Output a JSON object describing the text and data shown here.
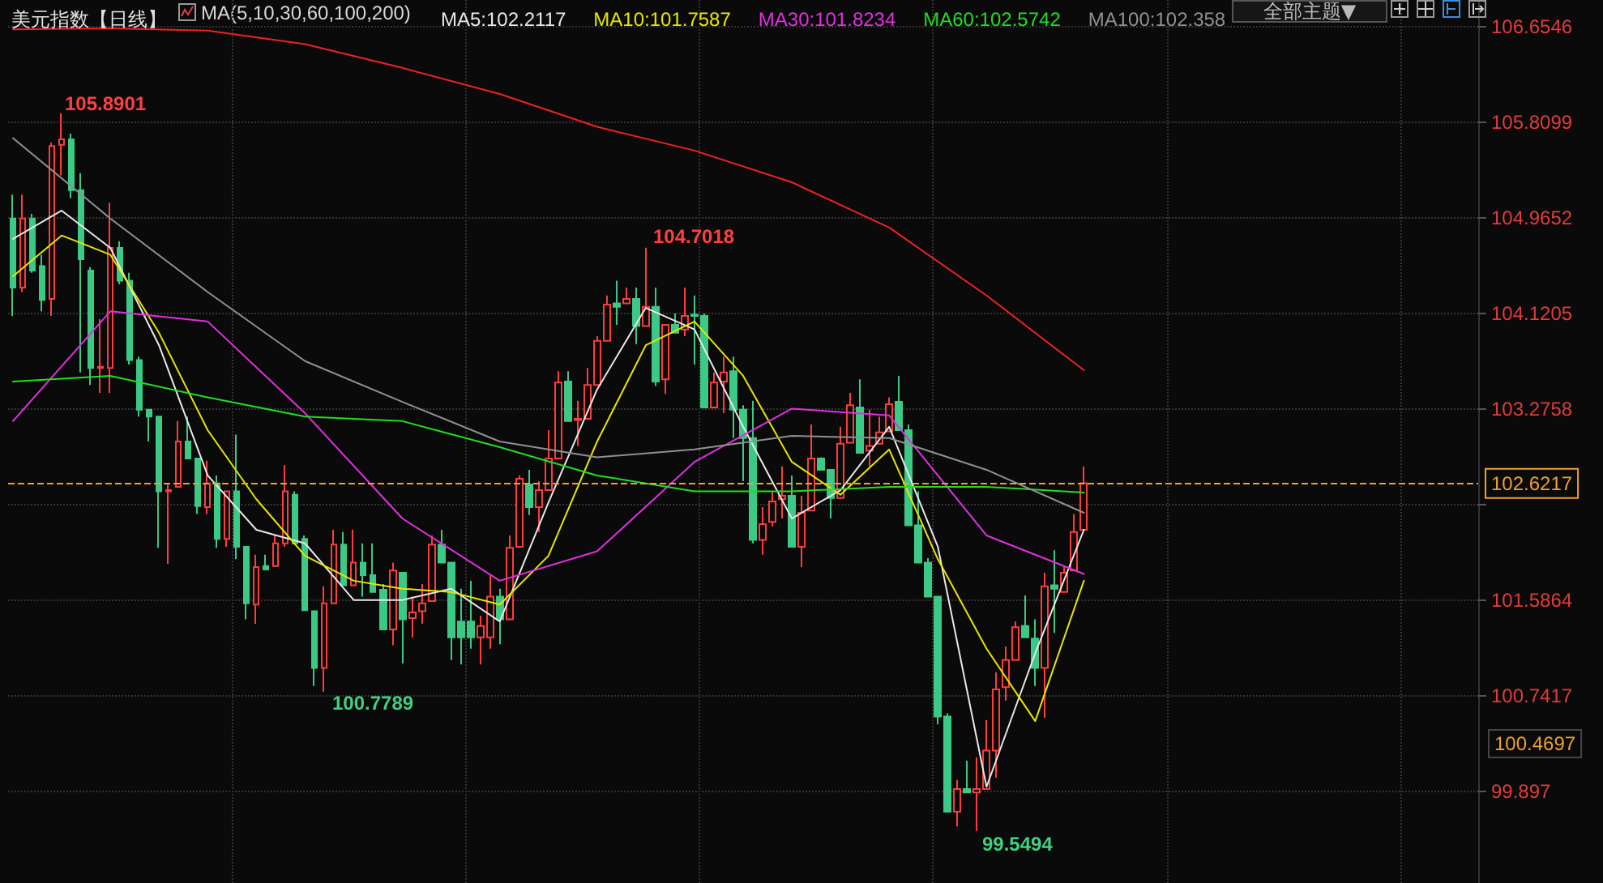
{
  "chart_data": {
    "type": "candlestick",
    "title": "美元指数【日线】",
    "annotations": [
      "MA(5,10,30,60,100,200)",
      "105.8901",
      "104.7018",
      "100.7789",
      "99.5494",
      "100.4697",
      "全部主题▼"
    ],
    "categories": [
      null,
      null,
      null,
      null,
      null,
      null,
      null,
      null,
      null,
      null,
      null,
      null,
      null,
      null,
      null,
      null,
      null,
      null,
      null,
      null,
      null,
      null,
      null,
      null,
      null,
      null,
      null,
      null,
      null,
      null,
      null,
      null,
      null,
      null,
      null,
      null,
      null,
      null,
      null,
      null,
      null,
      null,
      null,
      null,
      null,
      null,
      null,
      null,
      null,
      null,
      null,
      null,
      null,
      null,
      null,
      null,
      null,
      null,
      null,
      null,
      null,
      null,
      null,
      null,
      null,
      null,
      null,
      null,
      null,
      null,
      null,
      null,
      null,
      null,
      null,
      null,
      null,
      null,
      null,
      null,
      null,
      null,
      null,
      null,
      null,
      null,
      null,
      null,
      null,
      null,
      null,
      null,
      null,
      null,
      null,
      null,
      null,
      null,
      null,
      null,
      null,
      null,
      null,
      null,
      null,
      null,
      null,
      null,
      null,
      null,
      null,
      null,
      null,
      null,
      null,
      null,
      null,
      null,
      null,
      null,
      null,
      null,
      null,
      null,
      null,
      null,
      null,
      null,
      null,
      null,
      null,
      null,
      null,
      null,
      null,
      null,
      null,
      null,
      null,
      null,
      null,
      null,
      null,
      null,
      null,
      null,
      null,
      null,
      null,
      null,
      null
    ],
    "series": [
      {
        "colors": [
          "#3cc885",
          "#ff3b3b",
          "#3cc885",
          "#3cc885",
          "#ff3b3b",
          "#ff3b3b",
          "#3cc885",
          "#3cc885",
          "#3cc885",
          "#ff3b3b",
          "#ff3b3b",
          "#3cc885",
          "#3cc885",
          "#3cc885",
          "#3cc885",
          "#3cc885",
          "#ff3b3b",
          "#ff3b3b",
          "#3cc885",
          "#3cc885",
          "#ff3b3b",
          "#3cc885",
          "#ff3b3b",
          "#3cc885",
          "#3cc885",
          "#ff3b3b",
          "#3cc885",
          "#ff3b3b",
          "#ff3b3b",
          "#3cc885",
          "#3cc885",
          "#3cc885",
          "#ff3b3b",
          "#ff3b3b",
          "#3cc885",
          "#ff3b3b",
          "#3cc885",
          "#3cc885",
          "#3cc885",
          "#ff3b3b",
          "#3cc885",
          "#ff3b3b",
          "#ff3b3b",
          "#ff3b3b",
          "#3cc885",
          "#3cc885",
          "#3cc885",
          "#3cc885",
          "#ff3b3b",
          "#ff3b3b",
          "#3cc885",
          "#ff3b3b",
          "#ff3b3b",
          "#3cc885",
          "#ff3b3b",
          "#ff3b3b",
          "#ff3b3b",
          "#3cc885",
          "#ff3b3b",
          "#ff3b3b",
          "#ff3b3b",
          "#ff3b3b",
          "#3cc885",
          "#ff3b3b",
          "#3cc885",
          "#ff3b3b",
          "#3cc885",
          "#ff3b3b",
          "#3cc885",
          "#ff3b3b",
          "#3cc885",
          "#3cc885",
          "#ff3b3b",
          "#ff3b3b",
          "#3cc885",
          "#3cc885",
          "#3cc885",
          "#ff3b3b",
          "#ff3b3b",
          "#ff3b3b",
          "#3cc885",
          "#ff3b3b",
          "#ff3b3b",
          "#3cc885",
          "#3cc885",
          "#ff3b3b",
          "#ff3b3b",
          "#3cc885",
          "#ff3b3b",
          "#ff3b3b",
          "#ff3b3b",
          "#3cc885",
          "#3cc885",
          "#3cc885",
          "#3cc885",
          "#3cc885",
          "#3cc885",
          "#ff3b3b",
          "#3cc885",
          "#ff3b3b",
          "#ff3b3b",
          "#ff3b3b",
          "#ff3b3b",
          "#ff3b3b",
          "#3cc885",
          "#3cc885",
          "#ff3b3b",
          "#3cc885",
          "#ff3b3b",
          "#ff3b3b",
          "#ff3b3b",
          null,
          null,
          null,
          null,
          null,
          null,
          null,
          null,
          null,
          null,
          null,
          null,
          null,
          null,
          null,
          null,
          null,
          null,
          null,
          null,
          null,
          null,
          null,
          null,
          null,
          null,
          null,
          null,
          null,
          null,
          null,
          null,
          null,
          null,
          null,
          null,
          null,
          null,
          null,
          null
        ],
        "ohlc": [
          [
            104.96,
            105.17,
            104.1,
            104.35
          ],
          [
            104.35,
            105.17,
            104.31,
            104.96
          ],
          [
            104.96,
            105.0,
            104.48,
            104.5
          ],
          [
            104.54,
            104.64,
            104.14,
            104.24
          ],
          [
            104.25,
            105.63,
            104.1,
            105.6
          ],
          [
            105.61,
            105.8901,
            105.34,
            105.66
          ],
          [
            105.66,
            105.71,
            105.14,
            105.21
          ],
          [
            105.21,
            105.36,
            103.6,
            104.6
          ],
          [
            104.5,
            104.53,
            103.49,
            103.64
          ],
          [
            103.64,
            104.07,
            103.42,
            103.65
          ],
          [
            103.64,
            105.1,
            103.42,
            104.7
          ],
          [
            104.7,
            104.76,
            104.38,
            104.41
          ],
          [
            104.41,
            104.48,
            103.67,
            103.71
          ],
          [
            103.71,
            103.74,
            103.21,
            103.27
          ],
          [
            103.27,
            103.27,
            102.99,
            103.21
          ],
          [
            103.21,
            103.21,
            102.05,
            102.55
          ],
          [
            102.55,
            102.62,
            101.91,
            102.56
          ],
          [
            102.59,
            103.17,
            102.59,
            102.99
          ],
          [
            102.99,
            103.21,
            102.84,
            102.84
          ],
          [
            102.84,
            102.84,
            102.35,
            102.42
          ],
          [
            102.41,
            102.82,
            102.35,
            102.62
          ],
          [
            102.62,
            102.69,
            102.05,
            102.13
          ],
          [
            102.13,
            102.55,
            102.06,
            102.55
          ],
          [
            102.55,
            103.05,
            101.95,
            102.06
          ],
          [
            102.06,
            102.06,
            101.42,
            101.56
          ],
          [
            101.55,
            101.99,
            101.38,
            101.88
          ],
          [
            101.89,
            101.99,
            101.86,
            101.86
          ],
          [
            101.89,
            102.16,
            101.88,
            102.09
          ],
          [
            102.09,
            102.78,
            102.06,
            102.55
          ],
          [
            102.52,
            102.55,
            102.09,
            102.09
          ],
          [
            102.13,
            102.16,
            101.5,
            101.5
          ],
          [
            101.49,
            101.49,
            100.83,
            100.99
          ],
          [
            100.99,
            101.71,
            100.7789,
            101.56
          ],
          [
            101.56,
            102.21,
            101.56,
            102.08
          ],
          [
            102.08,
            102.19,
            101.72,
            101.72
          ],
          [
            101.72,
            102.21,
            101.72,
            101.92
          ],
          [
            101.92,
            102.09,
            101.62,
            101.81
          ],
          [
            101.81,
            102.09,
            101.66,
            101.66
          ],
          [
            101.68,
            101.73,
            101.33,
            101.33
          ],
          [
            101.33,
            101.92,
            101.19,
            101.85
          ],
          [
            101.83,
            101.83,
            101.03,
            101.42
          ],
          [
            101.43,
            101.62,
            101.26,
            101.48
          ],
          [
            101.49,
            101.73,
            101.38,
            101.56
          ],
          [
            101.58,
            102.16,
            101.58,
            102.08
          ],
          [
            102.08,
            102.21,
            101.92,
            101.92
          ],
          [
            101.92,
            101.92,
            101.06,
            101.26
          ],
          [
            101.4,
            101.69,
            101.02,
            101.26
          ],
          [
            101.4,
            101.76,
            101.16,
            101.26
          ],
          [
            101.26,
            101.45,
            101.02,
            101.36
          ],
          [
            101.26,
            101.81,
            101.16,
            101.62
          ],
          [
            101.62,
            101.69,
            101.2,
            101.42
          ],
          [
            101.42,
            102.16,
            101.42,
            102.05
          ],
          [
            102.06,
            102.69,
            102.06,
            102.66
          ],
          [
            102.61,
            102.74,
            102.34,
            102.41
          ],
          [
            102.41,
            102.64,
            102.19,
            102.56
          ],
          [
            102.56,
            103.09,
            102.56,
            102.84
          ],
          [
            102.84,
            103.61,
            102.84,
            103.51
          ],
          [
            103.52,
            103.61,
            103.17,
            103.17
          ],
          [
            103.18,
            103.35,
            102.95,
            103.19
          ],
          [
            103.19,
            103.64,
            103.19,
            103.49
          ],
          [
            103.49,
            103.92,
            103.49,
            103.88
          ],
          [
            103.88,
            104.28,
            103.88,
            104.2
          ],
          [
            104.21,
            104.41,
            104.02,
            104.18
          ],
          [
            104.21,
            104.35,
            104.21,
            104.25
          ],
          [
            104.25,
            104.35,
            103.85,
            104.01
          ],
          [
            104.01,
            104.7018,
            104.01,
            104.18
          ],
          [
            104.18,
            104.35,
            103.48,
            103.52
          ],
          [
            103.54,
            104.02,
            103.41,
            104.02
          ],
          [
            104.02,
            104.12,
            103.95,
            103.95
          ],
          [
            103.98,
            104.35,
            103.92,
            104.1
          ],
          [
            104.11,
            104.28,
            103.67,
            104.1
          ],
          [
            104.1,
            104.12,
            103.29,
            103.29
          ],
          [
            103.29,
            103.6,
            103.29,
            103.51
          ],
          [
            103.52,
            103.74,
            103.24,
            103.6
          ],
          [
            103.61,
            103.74,
            103.02,
            103.27
          ],
          [
            103.27,
            103.31,
            102.64,
            103.02
          ],
          [
            103.02,
            103.35,
            102.09,
            102.12
          ],
          [
            102.12,
            102.41,
            101.99,
            102.26
          ],
          [
            102.28,
            102.55,
            102.24,
            102.46
          ],
          [
            102.48,
            102.77,
            102.31,
            102.51
          ],
          [
            102.51,
            102.69,
            102.06,
            102.06
          ],
          [
            102.06,
            102.51,
            101.88,
            102.36
          ],
          [
            102.38,
            103.14,
            102.38,
            102.84
          ],
          [
            102.84,
            102.85,
            102.74,
            102.74
          ],
          [
            102.74,
            102.74,
            102.31,
            102.49
          ],
          [
            102.49,
            103.12,
            102.49,
            102.97
          ],
          [
            102.98,
            103.42,
            102.98,
            103.31
          ],
          [
            103.29,
            103.54,
            102.89,
            102.89
          ],
          [
            102.91,
            103.27,
            102.77,
            102.95
          ],
          [
            102.97,
            103.21,
            102.97,
            103.07
          ],
          [
            103.08,
            103.38,
            103.08,
            103.32
          ],
          [
            103.34,
            103.57,
            103.09,
            103.09
          ],
          [
            103.09,
            103.14,
            102.25,
            102.25
          ],
          [
            102.25,
            102.55,
            101.92,
            101.92
          ],
          [
            101.92,
            101.96,
            101.62,
            101.62
          ],
          [
            101.62,
            101.62,
            100.49,
            100.56
          ],
          [
            100.56,
            100.59,
            99.72,
            99.72
          ],
          [
            99.72,
            100.0,
            99.59,
            99.92
          ],
          [
            99.92,
            100.17,
            99.89,
            99.89
          ],
          [
            99.89,
            100.2,
            99.5494,
            99.92
          ],
          [
            99.92,
            100.53,
            99.92,
            100.26
          ],
          [
            100.26,
            100.95,
            100.02,
            100.8
          ],
          [
            100.82,
            101.18,
            100.7,
            101.06
          ],
          [
            101.06,
            101.4,
            101.06,
            101.35
          ],
          [
            101.36,
            101.63,
            101.26,
            101.26
          ],
          [
            101.25,
            101.42,
            100.83,
            100.99
          ],
          [
            100.99,
            101.83,
            100.55,
            101.71
          ],
          [
            101.72,
            102.03,
            101.3,
            101.69
          ],
          [
            101.66,
            101.89,
            101.66,
            101.83
          ],
          [
            101.85,
            102.35,
            101.85,
            102.19
          ],
          [
            102.21,
            102.77,
            102.21,
            102.6217
          ],
          null,
          null,
          null,
          null,
          null,
          null,
          null,
          null,
          null,
          null,
          null,
          null,
          null,
          null,
          null,
          null,
          null,
          null,
          null,
          null,
          null,
          null,
          null,
          null,
          null,
          null,
          null,
          null,
          null,
          null,
          null,
          null,
          null,
          null,
          null,
          null,
          null,
          null,
          null,
          null
        ]
      },
      {
        "type": "line",
        "name": "MA5:102.2117",
        "color": "#e8e8e8",
        "values": [
          104.78,
          null,
          null,
          null,
          null,
          105.03,
          null,
          null,
          null,
          null,
          104.7,
          null,
          null,
          null,
          null,
          103.84,
          null,
          null,
          null,
          null,
          102.69,
          null,
          null,
          null,
          null,
          102.21,
          null,
          null,
          null,
          null,
          102.09,
          null,
          null,
          null,
          null,
          101.59,
          null,
          null,
          null,
          null,
          101.59,
          null,
          null,
          null,
          null,
          101.69,
          null,
          null,
          null,
          null,
          101.4,
          null,
          null,
          null,
          null,
          102.45,
          null,
          null,
          null,
          null,
          103.45,
          null,
          null,
          null,
          null,
          104.17,
          null,
          null,
          null,
          null,
          103.98,
          null,
          null,
          null,
          null,
          103.12,
          null,
          null,
          null,
          null,
          102.31,
          null,
          null,
          null,
          null,
          102.56,
          null,
          null,
          null,
          null,
          103.12,
          null,
          null,
          null,
          null,
          102.06,
          null,
          null,
          null,
          null,
          99.94,
          null,
          null,
          null,
          null,
          101.12,
          null,
          null,
          null,
          null,
          102.21,
          null,
          null,
          null,
          null,
          null,
          null,
          null,
          null,
          null,
          null,
          null,
          null,
          null,
          null,
          null,
          null,
          null,
          null,
          null,
          null,
          null,
          null,
          null,
          null,
          null,
          null,
          null,
          null,
          null,
          null,
          null,
          null,
          null,
          null,
          null,
          null,
          null,
          null,
          null,
          null
        ]
      },
      {
        "type": "line",
        "name": "MA10:101.7587",
        "color": "#e6e600",
        "values": [
          104.45,
          null,
          null,
          null,
          null,
          104.81,
          null,
          null,
          null,
          null,
          104.64,
          null,
          null,
          null,
          null,
          103.95,
          null,
          null,
          null,
          null,
          103.09,
          null,
          null,
          null,
          null,
          102.48,
          null,
          null,
          null,
          null,
          101.98,
          null,
          null,
          null,
          null,
          101.76,
          null,
          null,
          null,
          null,
          101.69,
          null,
          null,
          null,
          null,
          101.66,
          null,
          null,
          null,
          null,
          101.55,
          null,
          null,
          null,
          null,
          101.98,
          null,
          null,
          null,
          null,
          102.99,
          null,
          null,
          null,
          null,
          103.84,
          null,
          null,
          null,
          null,
          104.05,
          null,
          null,
          null,
          null,
          103.57,
          null,
          null,
          null,
          null,
          102.81,
          null,
          null,
          null,
          null,
          102.52,
          null,
          null,
          null,
          null,
          102.92,
          null,
          null,
          null,
          null,
          101.95,
          null,
          null,
          null,
          null,
          101.16,
          null,
          null,
          null,
          null,
          100.52,
          null,
          null,
          null,
          null,
          101.76,
          null,
          null,
          null,
          null,
          null,
          null,
          null,
          null,
          null,
          null,
          null,
          null,
          null,
          null,
          null,
          null,
          null,
          null,
          null,
          null,
          null,
          null,
          null,
          null,
          null,
          null,
          null,
          null,
          null,
          null,
          null,
          null,
          null,
          null,
          null,
          null,
          null,
          null,
          null,
          null
        ]
      },
      {
        "type": "line",
        "name": "MA30:101.8234",
        "color": "#e030e0",
        "values": [
          103.17,
          null,
          null,
          null,
          null,
          null,
          null,
          null,
          null,
          null,
          104.14,
          null,
          null,
          null,
          null,
          null,
          null,
          null,
          null,
          null,
          104.05,
          null,
          null,
          null,
          null,
          null,
          null,
          null,
          null,
          null,
          103.24,
          null,
          null,
          null,
          null,
          null,
          null,
          null,
          null,
          null,
          102.31,
          null,
          null,
          null,
          null,
          null,
          null,
          null,
          null,
          null,
          101.76,
          null,
          null,
          null,
          null,
          null,
          null,
          null,
          null,
          null,
          102.02,
          null,
          null,
          null,
          null,
          null,
          null,
          null,
          null,
          null,
          102.81,
          null,
          null,
          null,
          null,
          null,
          null,
          null,
          null,
          null,
          103.28,
          null,
          null,
          null,
          null,
          null,
          null,
          null,
          null,
          null,
          103.22,
          null,
          null,
          null,
          null,
          null,
          null,
          null,
          null,
          null,
          102.16,
          null,
          null,
          null,
          null,
          null,
          null,
          null,
          null,
          null,
          101.82,
          null,
          null,
          null,
          null,
          null,
          null,
          null,
          null,
          null,
          null,
          null,
          null,
          null,
          null,
          null,
          null,
          null,
          null,
          null,
          null,
          null,
          null,
          null,
          null,
          null,
          null,
          null,
          null,
          null,
          null,
          null,
          null,
          null,
          null,
          null,
          null,
          null,
          null,
          null,
          null
        ]
      },
      {
        "type": "line",
        "name": "MA60:102.5742",
        "color": "#22dd22",
        "values": [
          103.52,
          null,
          null,
          null,
          null,
          null,
          null,
          null,
          null,
          null,
          103.57,
          null,
          null,
          null,
          null,
          null,
          null,
          null,
          null,
          null,
          103.38,
          null,
          null,
          null,
          null,
          null,
          null,
          null,
          null,
          null,
          103.21,
          null,
          null,
          null,
          null,
          null,
          null,
          null,
          null,
          null,
          103.17,
          null,
          null,
          null,
          null,
          null,
          null,
          null,
          null,
          null,
          102.94,
          null,
          null,
          null,
          null,
          null,
          null,
          null,
          null,
          null,
          102.69,
          null,
          null,
          null,
          null,
          null,
          null,
          null,
          null,
          null,
          102.55,
          null,
          null,
          null,
          null,
          null,
          null,
          null,
          null,
          null,
          102.55,
          null,
          null,
          null,
          null,
          null,
          null,
          null,
          null,
          null,
          102.59,
          null,
          null,
          null,
          null,
          null,
          null,
          null,
          null,
          null,
          102.59,
          null,
          null,
          null,
          null,
          null,
          null,
          null,
          null,
          null,
          102.54,
          null,
          null,
          null,
          null,
          null,
          null,
          null,
          null,
          null,
          null,
          null,
          null,
          null,
          null,
          null,
          null,
          null,
          null,
          null,
          null,
          null,
          null,
          null,
          null,
          null,
          null,
          null,
          null,
          null,
          null,
          null,
          null,
          null,
          null,
          null,
          null,
          null,
          null,
          null,
          null
        ]
      },
      {
        "type": "line",
        "name": "MA100:102.358",
        "color": "#909090",
        "values": [
          105.67,
          null,
          null,
          null,
          null,
          null,
          null,
          null,
          null,
          null,
          104.96,
          null,
          null,
          null,
          null,
          null,
          null,
          null,
          null,
          null,
          104.31,
          null,
          null,
          null,
          null,
          null,
          null,
          null,
          null,
          null,
          103.7,
          null,
          null,
          null,
          null,
          null,
          null,
          null,
          null,
          null,
          103.34,
          null,
          null,
          null,
          null,
          null,
          null,
          null,
          null,
          null,
          102.99,
          null,
          null,
          null,
          null,
          null,
          null,
          null,
          null,
          null,
          102.85,
          null,
          null,
          null,
          null,
          null,
          null,
          null,
          null,
          null,
          102.92,
          null,
          null,
          null,
          null,
          null,
          null,
          null,
          null,
          null,
          103.04,
          null,
          null,
          null,
          null,
          null,
          null,
          null,
          null,
          null,
          103.02,
          null,
          null,
          null,
          null,
          null,
          null,
          null,
          null,
          null,
          102.74,
          null,
          null,
          null,
          null,
          null,
          null,
          null,
          null,
          null,
          102.36,
          null,
          null,
          null,
          null,
          null,
          null,
          null,
          null,
          null,
          null,
          null,
          null,
          null,
          null,
          null,
          null,
          null,
          null,
          null,
          null,
          null,
          null,
          null,
          null,
          null,
          null,
          null,
          null,
          null,
          null,
          null,
          null,
          null,
          null,
          null,
          null,
          null,
          null,
          null,
          null
        ]
      },
      {
        "type": "line",
        "color": "#ee2222",
        "values": [
          106.63,
          null,
          null,
          null,
          null,
          null,
          null,
          null,
          null,
          null,
          106.64,
          null,
          null,
          null,
          null,
          null,
          null,
          null,
          null,
          null,
          106.62,
          null,
          null,
          null,
          null,
          null,
          null,
          null,
          null,
          null,
          106.5,
          null,
          null,
          null,
          null,
          null,
          null,
          null,
          null,
          null,
          106.29,
          null,
          null,
          null,
          null,
          null,
          null,
          null,
          null,
          null,
          106.06,
          null,
          null,
          null,
          null,
          null,
          null,
          null,
          null,
          null,
          105.77,
          null,
          null,
          null,
          null,
          null,
          null,
          null,
          null,
          null,
          105.56,
          null,
          null,
          null,
          null,
          null,
          null,
          null,
          null,
          null,
          105.28,
          null,
          null,
          null,
          null,
          null,
          null,
          null,
          null,
          null,
          104.88,
          null,
          null,
          null,
          null,
          null,
          null,
          null,
          null,
          null,
          104.28,
          null,
          null,
          null,
          null,
          null,
          null,
          null,
          null,
          null,
          103.62,
          null,
          null,
          null,
          null,
          null,
          null,
          null,
          null,
          null,
          null,
          null,
          null,
          null,
          null,
          null,
          null,
          null,
          null,
          null,
          null,
          null,
          null,
          null,
          null,
          null,
          null,
          null,
          null,
          null,
          null,
          null,
          null,
          null,
          null,
          null,
          null,
          null,
          null,
          null,
          null
        ]
      }
    ],
    "ylim": [
      99.09,
      106.89
    ],
    "yticks": [
      106.6546,
      105.8099,
      104.9652,
      104.1205,
      103.2758,
      {
        "value": 102.4311,
        "label": null
      },
      101.5864,
      100.7417,
      99.897
    ],
    "ref_lines": [
      {
        "axis": "y",
        "value": 102.6217,
        "label": "102.6217",
        "color": "#f0a030",
        "line_style": "dashed"
      }
    ],
    "grid": true,
    "legend": "top",
    "marker": "none"
  }
}
